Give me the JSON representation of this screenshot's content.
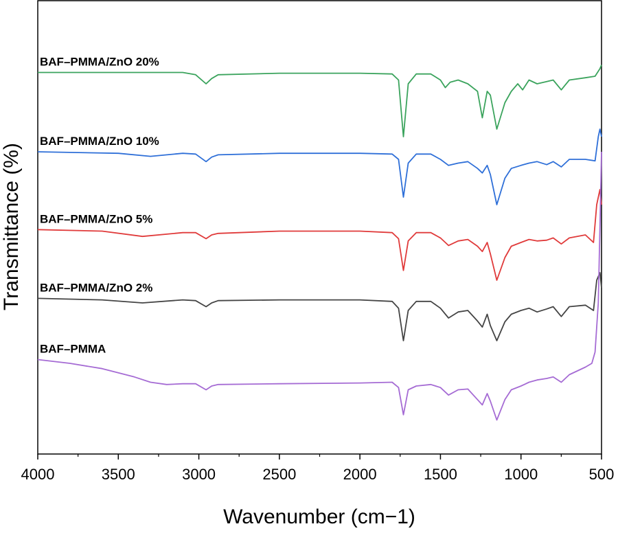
{
  "chart_data": {
    "type": "line",
    "title": "",
    "xlabel": "Wavenumber (cm−1)",
    "ylabel": "Transmittance  (%)",
    "xlim": [
      4000,
      500
    ],
    "ylim": [
      0,
      6
    ],
    "x_ticks": [
      4000,
      3500,
      3000,
      2500,
      2000,
      1500,
      1000,
      500
    ],
    "x_tick_labels": [
      "4000",
      "3500",
      "3000",
      "2500",
      "2000",
      "1500",
      "1000",
      "500"
    ],
    "y_ticks_shown": false,
    "series": [
      {
        "name": "BAF–PMMA/ZnO 20%",
        "color": "#3aa35c",
        "points": [
          [
            4000,
            5.05
          ],
          [
            3500,
            5.05
          ],
          [
            3100,
            5.05
          ],
          [
            3020,
            5.02
          ],
          [
            2955,
            4.9
          ],
          [
            2920,
            4.97
          ],
          [
            2880,
            5.02
          ],
          [
            2500,
            5.04
          ],
          [
            2000,
            5.04
          ],
          [
            1800,
            5.03
          ],
          [
            1760,
            4.95
          ],
          [
            1730,
            4.2
          ],
          [
            1700,
            4.9
          ],
          [
            1650,
            5.03
          ],
          [
            1560,
            5.03
          ],
          [
            1500,
            4.95
          ],
          [
            1470,
            4.85
          ],
          [
            1440,
            4.92
          ],
          [
            1390,
            4.95
          ],
          [
            1330,
            4.9
          ],
          [
            1270,
            4.8
          ],
          [
            1240,
            4.45
          ],
          [
            1210,
            4.8
          ],
          [
            1190,
            4.75
          ],
          [
            1150,
            4.3
          ],
          [
            1100,
            4.65
          ],
          [
            1060,
            4.8
          ],
          [
            1020,
            4.9
          ],
          [
            990,
            4.82
          ],
          [
            950,
            4.95
          ],
          [
            900,
            4.9
          ],
          [
            840,
            4.93
          ],
          [
            800,
            4.95
          ],
          [
            750,
            4.82
          ],
          [
            700,
            4.95
          ],
          [
            600,
            4.98
          ],
          [
            540,
            5.0
          ],
          [
            510,
            5.1
          ],
          [
            500,
            5.15
          ]
        ]
      },
      {
        "name": "BAF–PMMA/ZnO 10%",
        "color": "#2e6fd8",
        "points": [
          [
            4000,
            4.0
          ],
          [
            3500,
            3.98
          ],
          [
            3300,
            3.94
          ],
          [
            3100,
            3.98
          ],
          [
            3020,
            3.97
          ],
          [
            2955,
            3.87
          ],
          [
            2920,
            3.93
          ],
          [
            2880,
            3.96
          ],
          [
            2500,
            3.98
          ],
          [
            2000,
            3.98
          ],
          [
            1800,
            3.97
          ],
          [
            1760,
            3.9
          ],
          [
            1730,
            3.4
          ],
          [
            1700,
            3.85
          ],
          [
            1650,
            3.97
          ],
          [
            1560,
            3.97
          ],
          [
            1500,
            3.9
          ],
          [
            1450,
            3.82
          ],
          [
            1390,
            3.85
          ],
          [
            1330,
            3.87
          ],
          [
            1270,
            3.78
          ],
          [
            1240,
            3.72
          ],
          [
            1210,
            3.82
          ],
          [
            1190,
            3.7
          ],
          [
            1150,
            3.3
          ],
          [
            1100,
            3.65
          ],
          [
            1060,
            3.78
          ],
          [
            1000,
            3.82
          ],
          [
            950,
            3.85
          ],
          [
            900,
            3.87
          ],
          [
            840,
            3.83
          ],
          [
            800,
            3.87
          ],
          [
            750,
            3.8
          ],
          [
            700,
            3.9
          ],
          [
            600,
            3.9
          ],
          [
            540,
            3.88
          ],
          [
            520,
            4.2
          ],
          [
            510,
            4.3
          ],
          [
            500,
            4.2
          ]
        ]
      },
      {
        "name": "BAF–PMMA/ZnO 5%",
        "color": "#e03a3a",
        "points": [
          [
            4000,
            2.97
          ],
          [
            3600,
            2.95
          ],
          [
            3350,
            2.88
          ],
          [
            3100,
            2.93
          ],
          [
            3020,
            2.93
          ],
          [
            2955,
            2.85
          ],
          [
            2920,
            2.9
          ],
          [
            2880,
            2.92
          ],
          [
            2500,
            2.95
          ],
          [
            2000,
            2.95
          ],
          [
            1800,
            2.93
          ],
          [
            1760,
            2.85
          ],
          [
            1730,
            2.43
          ],
          [
            1700,
            2.82
          ],
          [
            1650,
            2.93
          ],
          [
            1560,
            2.93
          ],
          [
            1500,
            2.86
          ],
          [
            1450,
            2.76
          ],
          [
            1390,
            2.82
          ],
          [
            1330,
            2.84
          ],
          [
            1270,
            2.75
          ],
          [
            1240,
            2.68
          ],
          [
            1210,
            2.8
          ],
          [
            1190,
            2.65
          ],
          [
            1150,
            2.3
          ],
          [
            1100,
            2.6
          ],
          [
            1060,
            2.75
          ],
          [
            1000,
            2.8
          ],
          [
            950,
            2.84
          ],
          [
            900,
            2.82
          ],
          [
            840,
            2.83
          ],
          [
            800,
            2.86
          ],
          [
            750,
            2.78
          ],
          [
            700,
            2.86
          ],
          [
            600,
            2.9
          ],
          [
            550,
            2.8
          ],
          [
            530,
            3.3
          ],
          [
            510,
            3.5
          ],
          [
            500,
            3.3
          ]
        ]
      },
      {
        "name": "BAF–PMMA/ZnO 2%",
        "color": "#444444",
        "points": [
          [
            4000,
            2.06
          ],
          [
            3600,
            2.04
          ],
          [
            3350,
            2.0
          ],
          [
            3100,
            2.04
          ],
          [
            3020,
            2.03
          ],
          [
            2955,
            1.95
          ],
          [
            2920,
            2.0
          ],
          [
            2880,
            2.03
          ],
          [
            2500,
            2.04
          ],
          [
            2000,
            2.04
          ],
          [
            1800,
            2.02
          ],
          [
            1760,
            1.93
          ],
          [
            1730,
            1.5
          ],
          [
            1700,
            1.9
          ],
          [
            1650,
            2.02
          ],
          [
            1560,
            2.02
          ],
          [
            1500,
            1.93
          ],
          [
            1450,
            1.8
          ],
          [
            1390,
            1.88
          ],
          [
            1330,
            1.9
          ],
          [
            1270,
            1.76
          ],
          [
            1240,
            1.68
          ],
          [
            1210,
            1.85
          ],
          [
            1190,
            1.7
          ],
          [
            1150,
            1.5
          ],
          [
            1100,
            1.75
          ],
          [
            1060,
            1.85
          ],
          [
            1000,
            1.9
          ],
          [
            950,
            1.93
          ],
          [
            900,
            1.88
          ],
          [
            840,
            1.92
          ],
          [
            800,
            1.95
          ],
          [
            750,
            1.82
          ],
          [
            700,
            1.95
          ],
          [
            600,
            1.97
          ],
          [
            550,
            1.9
          ],
          [
            530,
            2.3
          ],
          [
            510,
            2.4
          ],
          [
            500,
            2.2
          ]
        ]
      },
      {
        "name": "BAF–PMMA",
        "color": "#a56bd4",
        "points": [
          [
            4000,
            1.25
          ],
          [
            3800,
            1.2
          ],
          [
            3600,
            1.13
          ],
          [
            3400,
            1.02
          ],
          [
            3300,
            0.95
          ],
          [
            3200,
            0.92
          ],
          [
            3100,
            0.93
          ],
          [
            3020,
            0.93
          ],
          [
            2955,
            0.85
          ],
          [
            2920,
            0.9
          ],
          [
            2880,
            0.92
          ],
          [
            2500,
            0.93
          ],
          [
            2000,
            0.94
          ],
          [
            1800,
            0.95
          ],
          [
            1760,
            0.88
          ],
          [
            1730,
            0.52
          ],
          [
            1700,
            0.85
          ],
          [
            1650,
            0.9
          ],
          [
            1560,
            0.92
          ],
          [
            1500,
            0.88
          ],
          [
            1450,
            0.78
          ],
          [
            1390,
            0.85
          ],
          [
            1330,
            0.86
          ],
          [
            1270,
            0.72
          ],
          [
            1240,
            0.65
          ],
          [
            1210,
            0.8
          ],
          [
            1190,
            0.7
          ],
          [
            1150,
            0.45
          ],
          [
            1100,
            0.72
          ],
          [
            1060,
            0.85
          ],
          [
            1000,
            0.9
          ],
          [
            950,
            0.95
          ],
          [
            900,
            0.98
          ],
          [
            840,
            1.0
          ],
          [
            800,
            1.02
          ],
          [
            750,
            0.95
          ],
          [
            700,
            1.05
          ],
          [
            650,
            1.1
          ],
          [
            600,
            1.15
          ],
          [
            560,
            1.2
          ],
          [
            540,
            1.35
          ],
          [
            520,
            2.0
          ],
          [
            510,
            3.0
          ],
          [
            500,
            4.0
          ]
        ]
      }
    ]
  }
}
